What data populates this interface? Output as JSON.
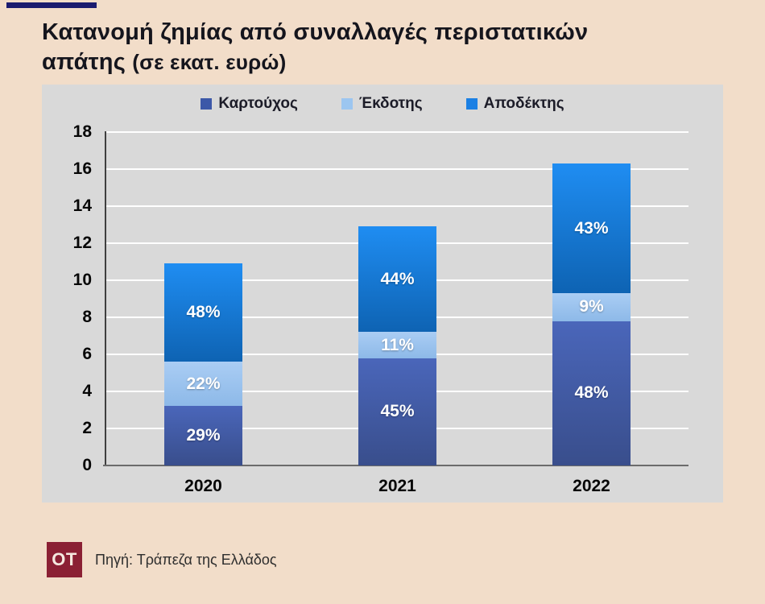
{
  "header": {
    "title_line1": "Κατανομή ζημίας από συναλλαγές περιστατικών",
    "title_line2_main": "απάτης ",
    "title_line2_sub": "(σε εκατ. ευρώ)"
  },
  "chart_data": {
    "type": "bar",
    "stacked": true,
    "title": "Κατανομή ζημίας από συναλλαγές περιστατικών απάτης (σε εκατ. ευρώ)",
    "categories": [
      "2020",
      "2021",
      "2022"
    ],
    "series": [
      {
        "name": "Καρτούχος",
        "values": [
          3.2,
          5.8,
          7.8
        ],
        "pct_labels": [
          "29%",
          "45%",
          "48%"
        ],
        "color": "#3c58a8",
        "gradient": [
          "#4a66ba",
          "#394e8c"
        ]
      },
      {
        "name": "Έκδοτης",
        "values": [
          2.4,
          1.4,
          1.5
        ],
        "pct_labels": [
          "22%",
          "11%",
          "9%"
        ],
        "color": "#9cc6f0",
        "gradient": [
          "#aacdf4",
          "#8db9e8"
        ]
      },
      {
        "name": "Αποδέκτης",
        "values": [
          5.3,
          5.7,
          7.0
        ],
        "pct_labels": [
          "48%",
          "44%",
          "43%"
        ],
        "color": "#1b80e4",
        "gradient": [
          "#1f8df2",
          "#0e63b3"
        ]
      }
    ],
    "totals": [
      10.9,
      12.9,
      16.3
    ],
    "xlabel": "",
    "ylabel": "",
    "ylim": [
      0,
      18
    ],
    "ytick_step": 2,
    "grid": true,
    "legend_position": "top",
    "plot_bg": "#d9d9d9",
    "gridline_color": "#ffffff"
  },
  "footer": {
    "logo_text": "OT",
    "source": "Πηγή: Τράπεζα της Ελλάδος"
  }
}
